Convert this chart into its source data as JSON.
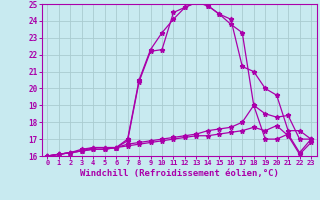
{
  "background_color": "#c8eaf0",
  "grid_color": "#aaccd0",
  "line_color": "#aa00aa",
  "title": "Windchill (Refroidissement éolien,°C)",
  "xlim": [
    -0.5,
    23.5
  ],
  "ylim": [
    16,
    25
  ],
  "yticks": [
    16,
    17,
    18,
    19,
    20,
    21,
    22,
    23,
    24,
    25
  ],
  "xticks": [
    0,
    1,
    2,
    3,
    4,
    5,
    6,
    7,
    8,
    9,
    10,
    11,
    12,
    13,
    14,
    15,
    16,
    17,
    18,
    19,
    20,
    21,
    22,
    23
  ],
  "hours": [
    0,
    1,
    2,
    3,
    4,
    5,
    6,
    7,
    8,
    9,
    10,
    11,
    12,
    13,
    14,
    15,
    16,
    17,
    18,
    19,
    20,
    21,
    22,
    23
  ],
  "series1": [
    16.0,
    16.1,
    16.2,
    16.3,
    16.4,
    16.4,
    16.5,
    17.0,
    20.5,
    22.3,
    23.3,
    24.1,
    24.8,
    25.1,
    24.9,
    24.4,
    23.8,
    23.3,
    19.0,
    17.0,
    17.0,
    17.3,
    16.2,
    17.0
  ],
  "series2": [
    16.0,
    16.1,
    16.2,
    16.3,
    16.4,
    16.4,
    16.5,
    16.9,
    20.4,
    22.2,
    22.3,
    24.5,
    24.8,
    25.1,
    24.9,
    24.4,
    24.1,
    21.3,
    21.0,
    20.0,
    19.6,
    17.5,
    17.5,
    17.0
  ],
  "series3": [
    16.0,
    16.1,
    16.2,
    16.4,
    16.5,
    16.5,
    16.5,
    16.7,
    16.8,
    16.9,
    17.0,
    17.1,
    17.2,
    17.3,
    17.5,
    17.6,
    17.7,
    18.0,
    19.0,
    18.5,
    18.3,
    18.4,
    17.0,
    17.0
  ],
  "series4": [
    16.0,
    16.1,
    16.2,
    16.3,
    16.5,
    16.5,
    16.5,
    16.6,
    16.7,
    16.8,
    16.9,
    17.0,
    17.1,
    17.2,
    17.2,
    17.3,
    17.4,
    17.5,
    17.7,
    17.5,
    17.8,
    17.2,
    16.1,
    16.8
  ]
}
